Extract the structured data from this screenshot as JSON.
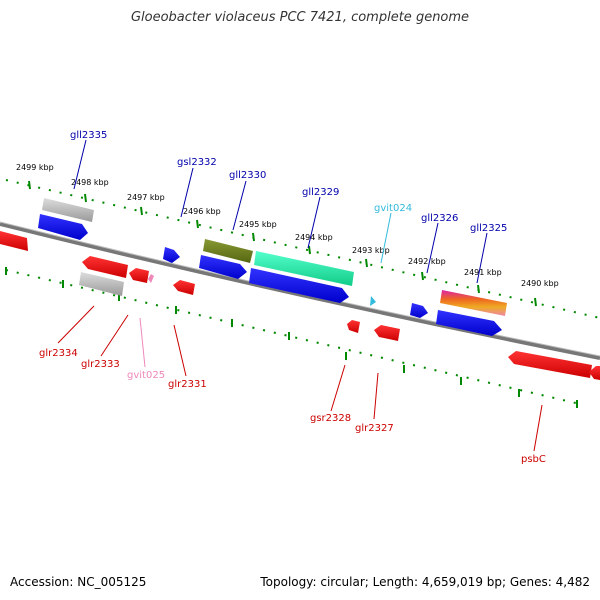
{
  "title": "Gloeobacter violaceus PCC 7421, complete genome",
  "footer": {
    "accession": "Accession: NC_005125",
    "topology": "Topology: circular; Length: 4,659,019 bp; Genes: 4,482"
  },
  "kbp_labels": [
    "2499 kbp",
    "2498 kbp",
    "2497 kbp",
    "2496 kbp",
    "2495 kbp",
    "2494 kbp",
    "2493 kbp",
    "2492 kbp",
    "2491 kbp",
    "2490 kbp"
  ],
  "genes_top": [
    {
      "name": "gll2335",
      "color": "#0000aa"
    },
    {
      "name": "gsl2332",
      "color": "#0000aa"
    },
    {
      "name": "gll2330",
      "color": "#0000aa"
    },
    {
      "name": "gll2329",
      "color": "#0000aa"
    },
    {
      "name": "gvit024",
      "color": "#33bbdd"
    },
    {
      "name": "gll2326",
      "color": "#0000aa"
    },
    {
      "name": "gll2325",
      "color": "#0000aa"
    }
  ],
  "genes_bottom": [
    {
      "name": "glr2334",
      "color": "#cc0000"
    },
    {
      "name": "glr2333",
      "color": "#cc0000"
    },
    {
      "name": "gvit025",
      "color": "#ee88bb"
    },
    {
      "name": "glr2331",
      "color": "#cc0000"
    },
    {
      "name": "gsr2328",
      "color": "#cc0000"
    },
    {
      "name": "glr2327",
      "color": "#cc0000"
    },
    {
      "name": "psbC",
      "color": "#cc0000"
    }
  ],
  "colors": {
    "forward_gene": "#0000ee",
    "reverse_gene": "#ee0000",
    "ruler": "#008800",
    "backbone": "#888888"
  }
}
